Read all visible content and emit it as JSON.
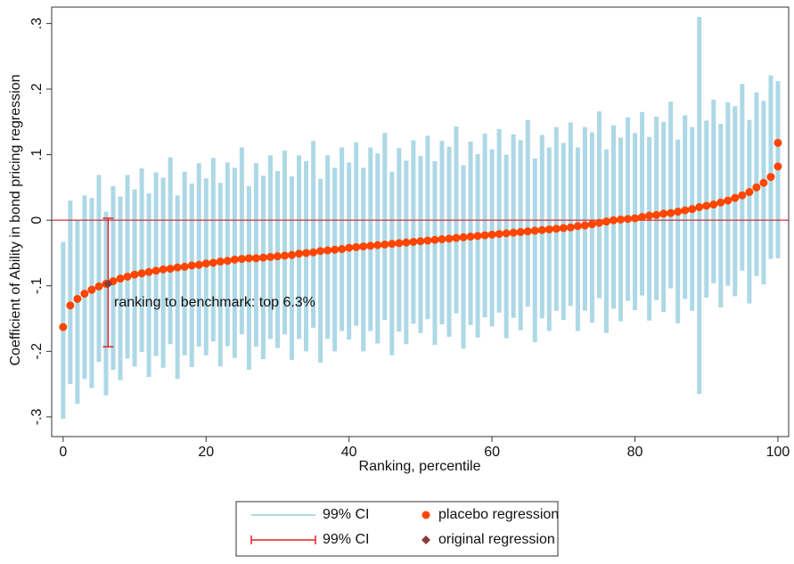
{
  "chart_data": {
    "type": "ci-ranking",
    "xlabel": "Ranking, percentile",
    "ylabel": "Coefficient of Ability in bond pricing regression",
    "annotation": "ranking to benchmark: top 6.3%",
    "xlim": [
      -1.6,
      101.5
    ],
    "ylim": [
      -0.33,
      0.325
    ],
    "xticks": [
      0,
      20,
      40,
      60,
      80,
      100
    ],
    "yticks": [
      {
        "value": -0.3,
        "label": "-.3"
      },
      {
        "value": -0.2,
        "label": "-.2"
      },
      {
        "value": -0.1,
        "label": "-.1"
      },
      0,
      {
        "value": 0.1,
        "label": ".1"
      },
      {
        "value": 0.2,
        "label": ".2"
      },
      {
        "value": 0.3,
        "label": ".3"
      }
    ],
    "hline": 0,
    "hline_color": "#d0303a",
    "series": [
      {
        "name": "99% CI",
        "color": "#add8e6",
        "x": [
          0,
          1,
          2,
          3,
          4,
          5,
          6,
          7,
          8,
          9,
          10,
          11,
          12,
          13,
          14,
          15,
          16,
          17,
          18,
          19,
          20,
          21,
          22,
          23,
          24,
          25,
          26,
          27,
          28,
          29,
          30,
          31,
          32,
          33,
          34,
          35,
          36,
          37,
          38,
          39,
          40,
          41,
          42,
          43,
          44,
          45,
          46,
          47,
          48,
          49,
          50,
          51,
          52,
          53,
          54,
          55,
          56,
          57,
          58,
          59,
          60,
          61,
          62,
          63,
          64,
          65,
          66,
          67,
          68,
          69,
          70,
          71,
          72,
          73,
          74,
          75,
          76,
          77,
          78,
          79,
          80,
          81,
          82,
          83,
          84,
          85,
          86,
          87,
          88,
          89,
          90,
          91,
          92,
          93,
          94,
          95,
          96,
          97,
          98,
          99,
          100
        ],
        "low": [
          -0.303,
          -0.25,
          -0.28,
          -0.242,
          -0.256,
          -0.216,
          -0.267,
          -0.228,
          -0.244,
          -0.211,
          -0.223,
          -0.201,
          -0.239,
          -0.207,
          -0.225,
          -0.189,
          -0.242,
          -0.206,
          -0.224,
          -0.193,
          -0.206,
          -0.185,
          -0.223,
          -0.192,
          -0.21,
          -0.174,
          -0.228,
          -0.193,
          -0.212,
          -0.181,
          -0.195,
          -0.174,
          -0.213,
          -0.181,
          -0.2,
          -0.164,
          -0.217,
          -0.181,
          -0.2,
          -0.169,
          -0.182,
          -0.161,
          -0.2,
          -0.169,
          -0.188,
          -0.152,
          -0.206,
          -0.17,
          -0.189,
          -0.158,
          -0.172,
          -0.151,
          -0.19,
          -0.159,
          -0.178,
          -0.142,
          -0.196,
          -0.16,
          -0.179,
          -0.148,
          -0.162,
          -0.141,
          -0.18,
          -0.149,
          -0.168,
          -0.132,
          -0.186,
          -0.15,
          -0.169,
          -0.138,
          -0.152,
          -0.131,
          -0.169,
          -0.138,
          -0.156,
          -0.119,
          -0.172,
          -0.135,
          -0.154,
          -0.123,
          -0.137,
          -0.115,
          -0.153,
          -0.122,
          -0.14,
          -0.104,
          -0.157,
          -0.12,
          -0.138,
          -0.265,
          -0.118,
          -0.096,
          -0.133,
          -0.1,
          -0.116,
          -0.077,
          -0.127,
          -0.085,
          -0.098,
          -0.059,
          -0.058
        ],
        "high": [
          -0.033,
          0.03,
          0,
          0.038,
          0.034,
          0.069,
          0.013,
          0.052,
          0.036,
          0.069,
          0.047,
          0.079,
          0.041,
          0.073,
          0.065,
          0.096,
          0.038,
          0.074,
          0.056,
          0.087,
          0.064,
          0.095,
          0.057,
          0.088,
          0.08,
          0.111,
          0.052,
          0.087,
          0.068,
          0.099,
          0.075,
          0.106,
          0.067,
          0.099,
          0.09,
          0.121,
          0.063,
          0.099,
          0.08,
          0.111,
          0.088,
          0.119,
          0.08,
          0.111,
          0.102,
          0.133,
          0.074,
          0.11,
          0.091,
          0.122,
          0.098,
          0.129,
          0.09,
          0.121,
          0.112,
          0.143,
          0.084,
          0.12,
          0.101,
          0.132,
          0.108,
          0.139,
          0.1,
          0.131,
          0.122,
          0.153,
          0.094,
          0.13,
          0.111,
          0.142,
          0.118,
          0.149,
          0.111,
          0.142,
          0.134,
          0.166,
          0.108,
          0.145,
          0.126,
          0.157,
          0.133,
          0.165,
          0.127,
          0.158,
          0.15,
          0.181,
          0.123,
          0.16,
          0.142,
          0.31,
          0.152,
          0.184,
          0.147,
          0.18,
          0.174,
          0.208,
          0.153,
          0.195,
          0.182,
          0.221,
          0.212
        ]
      },
      {
        "name": "placebo regression",
        "color": "#ff4500",
        "x": [
          0,
          1,
          2,
          3,
          4,
          5,
          6,
          7,
          8,
          9,
          10,
          11,
          12,
          13,
          14,
          15,
          16,
          17,
          18,
          19,
          20,
          21,
          22,
          23,
          24,
          25,
          26,
          27,
          28,
          29,
          30,
          31,
          32,
          33,
          34,
          35,
          36,
          37,
          38,
          39,
          40,
          41,
          42,
          43,
          44,
          45,
          46,
          47,
          48,
          49,
          50,
          51,
          52,
          53,
          54,
          55,
          56,
          57,
          58,
          59,
          60,
          61,
          62,
          63,
          64,
          65,
          66,
          67,
          68,
          69,
          70,
          71,
          72,
          73,
          74,
          75,
          76,
          77,
          78,
          79,
          80,
          81,
          82,
          83,
          84,
          85,
          86,
          87,
          88,
          89,
          90,
          91,
          92,
          93,
          94,
          95,
          96,
          97,
          98,
          99,
          100,
          100
        ],
        "values": [
          -0.163,
          -0.13,
          -0.12,
          -0.112,
          -0.106,
          -0.101,
          -0.097,
          -0.093,
          -0.089,
          -0.086,
          -0.083,
          -0.081,
          -0.079,
          -0.077,
          -0.075,
          -0.074,
          -0.072,
          -0.071,
          -0.069,
          -0.068,
          -0.066,
          -0.065,
          -0.063,
          -0.062,
          -0.06,
          -0.059,
          -0.058,
          -0.058,
          -0.057,
          -0.056,
          -0.055,
          -0.054,
          -0.053,
          -0.051,
          -0.05,
          -0.049,
          -0.047,
          -0.046,
          -0.045,
          -0.044,
          -0.042,
          -0.041,
          -0.04,
          -0.039,
          -0.038,
          -0.037,
          -0.036,
          -0.035,
          -0.034,
          -0.033,
          -0.032,
          -0.031,
          -0.03,
          -0.029,
          -0.028,
          -0.027,
          -0.026,
          -0.025,
          -0.024,
          -0.023,
          -0.022,
          -0.021,
          -0.02,
          -0.019,
          -0.018,
          -0.017,
          -0.016,
          -0.015,
          -0.014,
          -0.013,
          -0.012,
          -0.011,
          -0.009,
          -0.008,
          -0.006,
          -0.004,
          -0.002,
          0,
          0.001,
          0.002,
          0.003,
          0.005,
          0.007,
          0.008,
          0.01,
          0.011,
          0.013,
          0.015,
          0.017,
          0.02,
          0.022,
          0.024,
          0.027,
          0.03,
          0.034,
          0.038,
          0.043,
          0.05,
          0.057,
          0.066,
          0.082,
          0.118
        ]
      },
      {
        "name": "99% CI",
        "color": "#e0242a",
        "x": [
          6.3
        ],
        "low": [
          -0.193
        ],
        "high": [
          0.003
        ]
      },
      {
        "name": "original regression",
        "color": "#8b3a3a",
        "x": [
          6.3
        ],
        "values": [
          -0.097
        ]
      }
    ]
  }
}
